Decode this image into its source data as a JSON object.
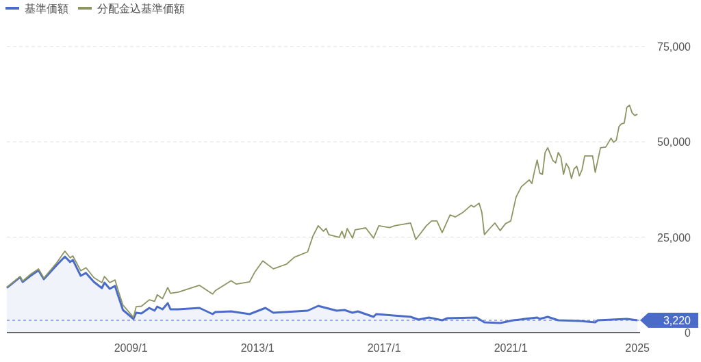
{
  "chart_data": {
    "type": "line",
    "legend": "top left",
    "grid": "y",
    "xlim": [
      "2005-02",
      "2025-02"
    ],
    "ylim": [
      0,
      75000
    ],
    "xticks": [
      {
        "value": "2009-01",
        "label": "2009/1"
      },
      {
        "value": "2013-01",
        "label": "2013/1"
      },
      {
        "value": "2017-01",
        "label": "2017/1"
      },
      {
        "value": "2021-01",
        "label": "2021/1"
      },
      {
        "value": "2025-01",
        "label": "2025"
      }
    ],
    "yticks": [
      0,
      {
        "value": 25000,
        "label": "25,000"
      },
      {
        "value": 50000,
        "label": "50,000"
      },
      {
        "value": 75000,
        "label": "75,000"
      }
    ],
    "ref_lines": [
      {
        "axis": "y",
        "value": 3220,
        "label": "3,220",
        "color": "#4a6cc8",
        "line_style": "dashed"
      }
    ],
    "series": [
      {
        "name": "基準価額",
        "type": "area",
        "color": "#4a6cc8",
        "x": [
          "2005-02",
          "2005-07",
          "2005-08",
          "2005-11",
          "2006-02",
          "2006-04",
          "2006-09",
          "2006-12",
          "2007-02",
          "2007-03",
          "2007-06",
          "2007-08",
          "2007-11",
          "2008-02",
          "2008-03",
          "2008-05",
          "2008-07",
          "2008-08",
          "2008-10",
          "2009-02",
          "2009-03",
          "2009-05",
          "2009-08",
          "2009-10",
          "2009-11",
          "2010-01",
          "2010-03",
          "2010-04",
          "2010-07",
          "2011-03",
          "2011-08",
          "2011-09",
          "2012-03",
          "2012-10",
          "2013-04",
          "2013-07",
          "2014-08",
          "2014-12",
          "2015-03",
          "2015-07",
          "2015-10",
          "2016-01",
          "2016-03",
          "2016-09",
          "2016-10",
          "2017-11",
          "2018-02",
          "2018-06",
          "2018-11",
          "2019-01",
          "2019-12",
          "2020-03",
          "2020-09",
          "2021-02",
          "2021-11",
          "2021-12",
          "2022-03",
          "2022-07",
          "2023-03",
          "2023-09",
          "2023-10",
          "2024-09",
          "2025-01"
        ],
        "values": [
          11720,
          14540,
          13280,
          14900,
          16330,
          14000,
          17770,
          19920,
          18490,
          19030,
          14900,
          15620,
          13280,
          11670,
          13100,
          11490,
          12210,
          10050,
          5920,
          3590,
          5200,
          5030,
          6460,
          5740,
          6820,
          6100,
          7720,
          6100,
          6100,
          6460,
          4850,
          5380,
          5560,
          4850,
          6460,
          5200,
          5740,
          7000,
          6460,
          5740,
          5920,
          5200,
          5560,
          4130,
          4850,
          4130,
          3410,
          3950,
          3230,
          3770,
          3950,
          2690,
          2510,
          3230,
          3950,
          3590,
          4130,
          3230,
          3050,
          2690,
          3230,
          3590,
          3220
        ]
      },
      {
        "name": "分配金込基準価額",
        "color": "#8c9462",
        "x": [
          "2005-02",
          "2005-07",
          "2005-08",
          "2005-11",
          "2006-02",
          "2006-04",
          "2006-09",
          "2006-12",
          "2007-02",
          "2007-03",
          "2007-06",
          "2007-08",
          "2007-11",
          "2008-02",
          "2008-03",
          "2008-05",
          "2008-07",
          "2008-08",
          "2008-10",
          "2009-02",
          "2009-03",
          "2009-05",
          "2009-08",
          "2009-10",
          "2009-11",
          "2010-01",
          "2010-03",
          "2010-04",
          "2010-07",
          "2011-03",
          "2011-08",
          "2011-09",
          "2012-03",
          "2012-05",
          "2012-10",
          "2012-12",
          "2013-03",
          "2013-07",
          "2013-12",
          "2014-03",
          "2014-08",
          "2014-10",
          "2014-12",
          "2015-02",
          "2015-03",
          "2015-04",
          "2015-08",
          "2015-09",
          "2015-10",
          "2015-11",
          "2016-01",
          "2016-02",
          "2016-06",
          "2016-09",
          "2016-11",
          "2017-03",
          "2017-05",
          "2017-11",
          "2018-01",
          "2018-05",
          "2018-07",
          "2018-09",
          "2018-11",
          "2019-02",
          "2019-04",
          "2019-07",
          "2019-10",
          "2019-11",
          "2020-01",
          "2020-02",
          "2020-03",
          "2020-05",
          "2020-07",
          "2020-09",
          "2020-11",
          "2021-01",
          "2021-03",
          "2021-05",
          "2021-08",
          "2021-09",
          "2021-10",
          "2021-11",
          "2021-12",
          "2022-01",
          "2022-02",
          "2022-03",
          "2022-05",
          "2022-06",
          "2022-07",
          "2022-08",
          "2022-09",
          "2022-10",
          "2022-11",
          "2022-12",
          "2023-01",
          "2023-02",
          "2023-03",
          "2023-04",
          "2023-05",
          "2023-08",
          "2023-09",
          "2023-11",
          "2024-01",
          "2024-03",
          "2024-04",
          "2024-05",
          "2024-06",
          "2024-07",
          "2024-08",
          "2024-09",
          "2024-10",
          "2024-11",
          "2024-12",
          "2025-01"
        ],
        "values": [
          11900,
          14700,
          13500,
          15300,
          16700,
          14300,
          18400,
          21360,
          19600,
          20100,
          16200,
          17000,
          14400,
          13100,
          14700,
          13100,
          13800,
          11500,
          7200,
          4000,
          6800,
          6900,
          8600,
          8200,
          9900,
          8900,
          11800,
          10300,
          10600,
          12400,
          10100,
          11000,
          13600,
          12700,
          13300,
          15900,
          18800,
          16700,
          17950,
          19750,
          21180,
          25300,
          28000,
          26570,
          27300,
          25700,
          24950,
          26570,
          24770,
          27280,
          24770,
          26930,
          27460,
          24770,
          28000,
          27500,
          28000,
          28720,
          24410,
          28000,
          29260,
          29260,
          26210,
          30870,
          30300,
          31590,
          33390,
          32900,
          33930,
          31600,
          25670,
          27280,
          28720,
          26750,
          28540,
          29260,
          35540,
          38230,
          40030,
          39100,
          42360,
          45230,
          41820,
          41460,
          47210,
          48470,
          45050,
          44500,
          47210,
          46000,
          41460,
          44340,
          43200,
          40390,
          42900,
          43600,
          41100,
          42700,
          46310,
          46310,
          42000,
          48470,
          48650,
          50980,
          49900,
          50440,
          54030,
          54750,
          54930,
          59060,
          59600,
          57620,
          56900,
          57260
        ]
      }
    ]
  }
}
